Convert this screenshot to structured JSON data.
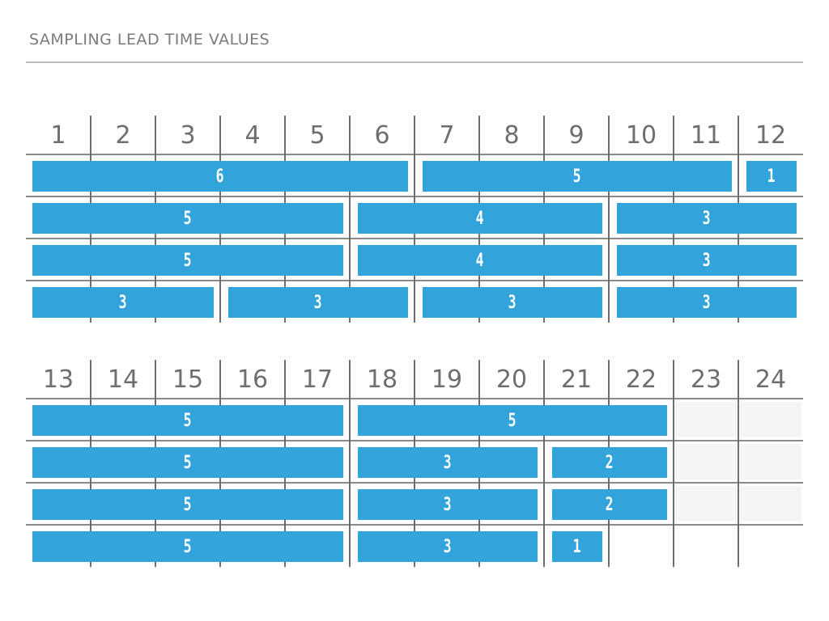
{
  "title": "SAMPLING LEAD TIME VALUES",
  "colors": {
    "bar": "#33a3dc",
    "bar_text": "#ffffff",
    "grid_line": "#6f6f6f",
    "month_label": "#6e6e6e",
    "empty_cell": "#f5f5f5"
  },
  "panels": [
    {
      "months": [
        "1",
        "2",
        "3",
        "4",
        "5",
        "6",
        "7",
        "8",
        "9",
        "10",
        "11",
        "12"
      ],
      "rows": [
        [
          {
            "start": 1,
            "span": 6,
            "label": "6"
          },
          {
            "start": 7,
            "span": 5,
            "label": "5"
          },
          {
            "start": 12,
            "span": 1,
            "label": "1"
          }
        ],
        [
          {
            "start": 1,
            "span": 5,
            "label": "5"
          },
          {
            "start": 6,
            "span": 4,
            "label": "4"
          },
          {
            "start": 10,
            "span": 3,
            "label": "3"
          }
        ],
        [
          {
            "start": 1,
            "span": 5,
            "label": "5"
          },
          {
            "start": 6,
            "span": 4,
            "label": "4"
          },
          {
            "start": 10,
            "span": 3,
            "label": "3"
          }
        ],
        [
          {
            "start": 1,
            "span": 3,
            "label": "3"
          },
          {
            "start": 4,
            "span": 3,
            "label": "3"
          },
          {
            "start": 7,
            "span": 3,
            "label": "3"
          },
          {
            "start": 10,
            "span": 3,
            "label": "3"
          }
        ]
      ]
    },
    {
      "months": [
        "13",
        "14",
        "15",
        "16",
        "17",
        "18",
        "19",
        "20",
        "21",
        "22",
        "23",
        "24"
      ],
      "rows": [
        [
          {
            "start": 13,
            "span": 5,
            "label": "5"
          },
          {
            "start": 18,
            "span": 5,
            "label": "5"
          }
        ],
        [
          {
            "start": 13,
            "span": 5,
            "label": "5"
          },
          {
            "start": 18,
            "span": 3,
            "label": "3"
          },
          {
            "start": 21,
            "span": 2,
            "label": "2"
          }
        ],
        [
          {
            "start": 13,
            "span": 5,
            "label": "5"
          },
          {
            "start": 18,
            "span": 3,
            "label": "3"
          },
          {
            "start": 21,
            "span": 2,
            "label": "2"
          }
        ],
        [
          {
            "start": 13,
            "span": 5,
            "label": "5"
          },
          {
            "start": 18,
            "span": 3,
            "label": "3"
          },
          {
            "start": 21,
            "span": 1,
            "label": "1"
          }
        ]
      ]
    }
  ]
}
